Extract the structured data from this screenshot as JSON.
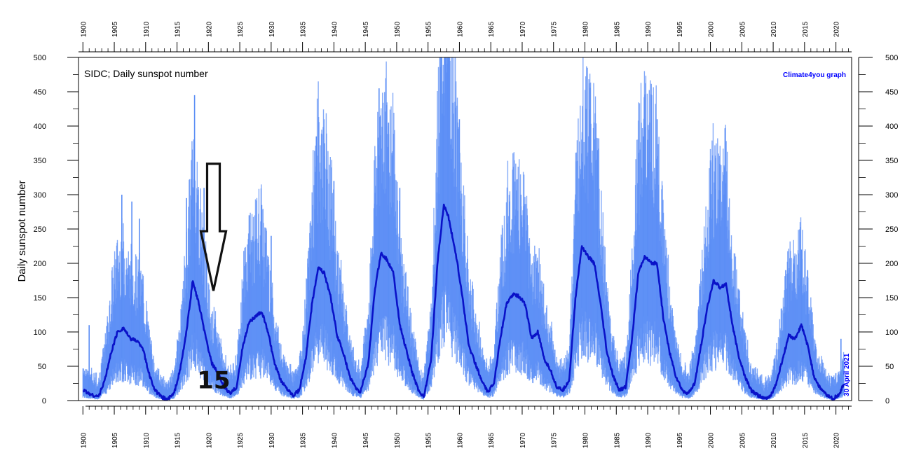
{
  "chart_data": {
    "type": "line",
    "title": "SIDC; Daily sunspot number",
    "credit": "Climate4you graph",
    "date_stamp": "30 April 2021",
    "ylabel": "Daily sunspot number",
    "xlabel": "",
    "xlim": [
      1899.3,
      2022.5
    ],
    "ylim": [
      0,
      500
    ],
    "y_ticks": [
      "0",
      "50",
      "100",
      "150",
      "200",
      "250",
      "300",
      "350",
      "400",
      "450",
      "500"
    ],
    "x_ticks": [
      "1900",
      "1905",
      "1910",
      "1915",
      "1920",
      "1925",
      "1930",
      "1935",
      "1940",
      "1945",
      "1950",
      "1955",
      "1960",
      "1965",
      "1970",
      "1975",
      "1980",
      "1985",
      "1990",
      "1995",
      "2000",
      "2005",
      "2010",
      "2015",
      "2020"
    ],
    "grid": false,
    "colors": {
      "daily": "#5b8ef5",
      "smoothed": "#0a12c8",
      "credit": "#0000ff",
      "arrow": "#111111"
    },
    "series": [
      {
        "kind": "smoothed",
        "x": [
          1900,
          1901.5,
          1902.5,
          1903.5,
          1904.5,
          1905.5,
          1906.5,
          1907.5,
          1908.5,
          1909.5,
          1910.5,
          1911.5,
          1912.5,
          1913.5,
          1914.5,
          1915.5,
          1916.5,
          1917.5,
          1918.5,
          1919.5,
          1920.5,
          1921.5,
          1922.5,
          1923.5,
          1924.5,
          1925.5,
          1926.5,
          1927.5,
          1928.5,
          1929.5,
          1930.5,
          1931.5,
          1932.5,
          1933.5,
          1934.5,
          1935.5,
          1936.5,
          1937.5,
          1938.5,
          1939.5,
          1940.5,
          1941.5,
          1942.5,
          1943.5,
          1944.2,
          1945.5,
          1946.5,
          1947.5,
          1948.5,
          1949.5,
          1950.5,
          1951.5,
          1952.5,
          1953.5,
          1954.3,
          1955.5,
          1956.5,
          1957.5,
          1958.2,
          1959.5,
          1960.5,
          1961.5,
          1962.5,
          1963.5,
          1964.5,
          1965.5,
          1966.5,
          1967.5,
          1968.5,
          1969.5,
          1970.5,
          1971.5,
          1972.5,
          1973.5,
          1974.5,
          1975.5,
          1976.5,
          1977.5,
          1978.5,
          1979.5,
          1980.5,
          1981.5,
          1982.5,
          1983.5,
          1984.5,
          1985.5,
          1986.5,
          1987.5,
          1988.5,
          1989.5,
          1990.5,
          1991.5,
          1992.5,
          1993.5,
          1994.5,
          1995.5,
          1996.5,
          1997.5,
          1998.5,
          1999.5,
          2000.5,
          2001.5,
          2002.5,
          2003.5,
          2004.5,
          2005.5,
          2006.5,
          2007.5,
          2008.5,
          2009.5,
          2010.5,
          2011.5,
          2012.5,
          2013.5,
          2014.5,
          2015.5,
          2016.5,
          2017.5,
          2018.5,
          2019.5,
          2020.5,
          2021.3
        ],
        "y": [
          15,
          8,
          6,
          30,
          70,
          100,
          106,
          90,
          88,
          78,
          40,
          15,
          5,
          2,
          10,
          45,
          100,
          175,
          140,
          95,
          55,
          40,
          20,
          10,
          20,
          80,
          115,
          122,
          130,
          100,
          55,
          30,
          18,
          8,
          15,
          60,
          140,
          195,
          185,
          150,
          95,
          70,
          35,
          18,
          12,
          55,
          160,
          215,
          205,
          185,
          110,
          75,
          40,
          15,
          5,
          60,
          200,
          285,
          270,
          210,
          150,
          80,
          55,
          30,
          12,
          25,
          90,
          140,
          155,
          152,
          140,
          90,
          100,
          60,
          45,
          20,
          15,
          30,
          150,
          225,
          210,
          200,
          140,
          70,
          35,
          15,
          20,
          90,
          185,
          210,
          200,
          200,
          120,
          70,
          35,
          15,
          10,
          25,
          80,
          135,
          175,
          165,
          170,
          110,
          65,
          35,
          15,
          8,
          3,
          5,
          25,
          60,
          95,
          90,
          110,
          80,
          35,
          18,
          8,
          3,
          8,
          25
        ]
      },
      {
        "kind": "daily",
        "peaks": [
          {
            "x": 1901.0,
            "y": 110
          },
          {
            "x": 1906.2,
            "y": 300
          },
          {
            "x": 1907.8,
            "y": 290
          },
          {
            "x": 1909.0,
            "y": 265
          },
          {
            "x": 1916.5,
            "y": 295
          },
          {
            "x": 1917.8,
            "y": 445
          },
          {
            "x": 1919.3,
            "y": 310
          },
          {
            "x": 1926.5,
            "y": 270
          },
          {
            "x": 1928.5,
            "y": 285
          },
          {
            "x": 1930.0,
            "y": 240
          },
          {
            "x": 1937.2,
            "y": 385
          },
          {
            "x": 1938.5,
            "y": 375
          },
          {
            "x": 1940.0,
            "y": 320
          },
          {
            "x": 1947.2,
            "y": 455
          },
          {
            "x": 1948.7,
            "y": 405
          },
          {
            "x": 1950.5,
            "y": 310
          },
          {
            "x": 1957.4,
            "y": 465
          },
          {
            "x": 1958.2,
            "y": 500
          },
          {
            "x": 1960.0,
            "y": 410
          },
          {
            "x": 1968.0,
            "y": 290
          },
          {
            "x": 1969.8,
            "y": 300
          },
          {
            "x": 1970.8,
            "y": 270
          },
          {
            "x": 1979.5,
            "y": 360
          },
          {
            "x": 1980.2,
            "y": 425
          },
          {
            "x": 1982.0,
            "y": 365
          },
          {
            "x": 1989.3,
            "y": 385
          },
          {
            "x": 1990.0,
            "y": 380
          },
          {
            "x": 1991.5,
            "y": 410
          },
          {
            "x": 2000.0,
            "y": 350
          },
          {
            "x": 2001.5,
            "y": 345
          },
          {
            "x": 2002.3,
            "y": 300
          },
          {
            "x": 2012.0,
            "y": 190
          },
          {
            "x": 2014.5,
            "y": 220
          },
          {
            "x": 2015.5,
            "y": 190
          },
          {
            "x": 2020.8,
            "y": 90
          }
        ]
      }
    ],
    "annotations": [
      {
        "kind": "arrow",
        "x": 1920.8,
        "y_top": 345,
        "y_tip": 160
      },
      {
        "kind": "text",
        "text": "15",
        "x": 1918.2,
        "y": 18
      }
    ]
  }
}
